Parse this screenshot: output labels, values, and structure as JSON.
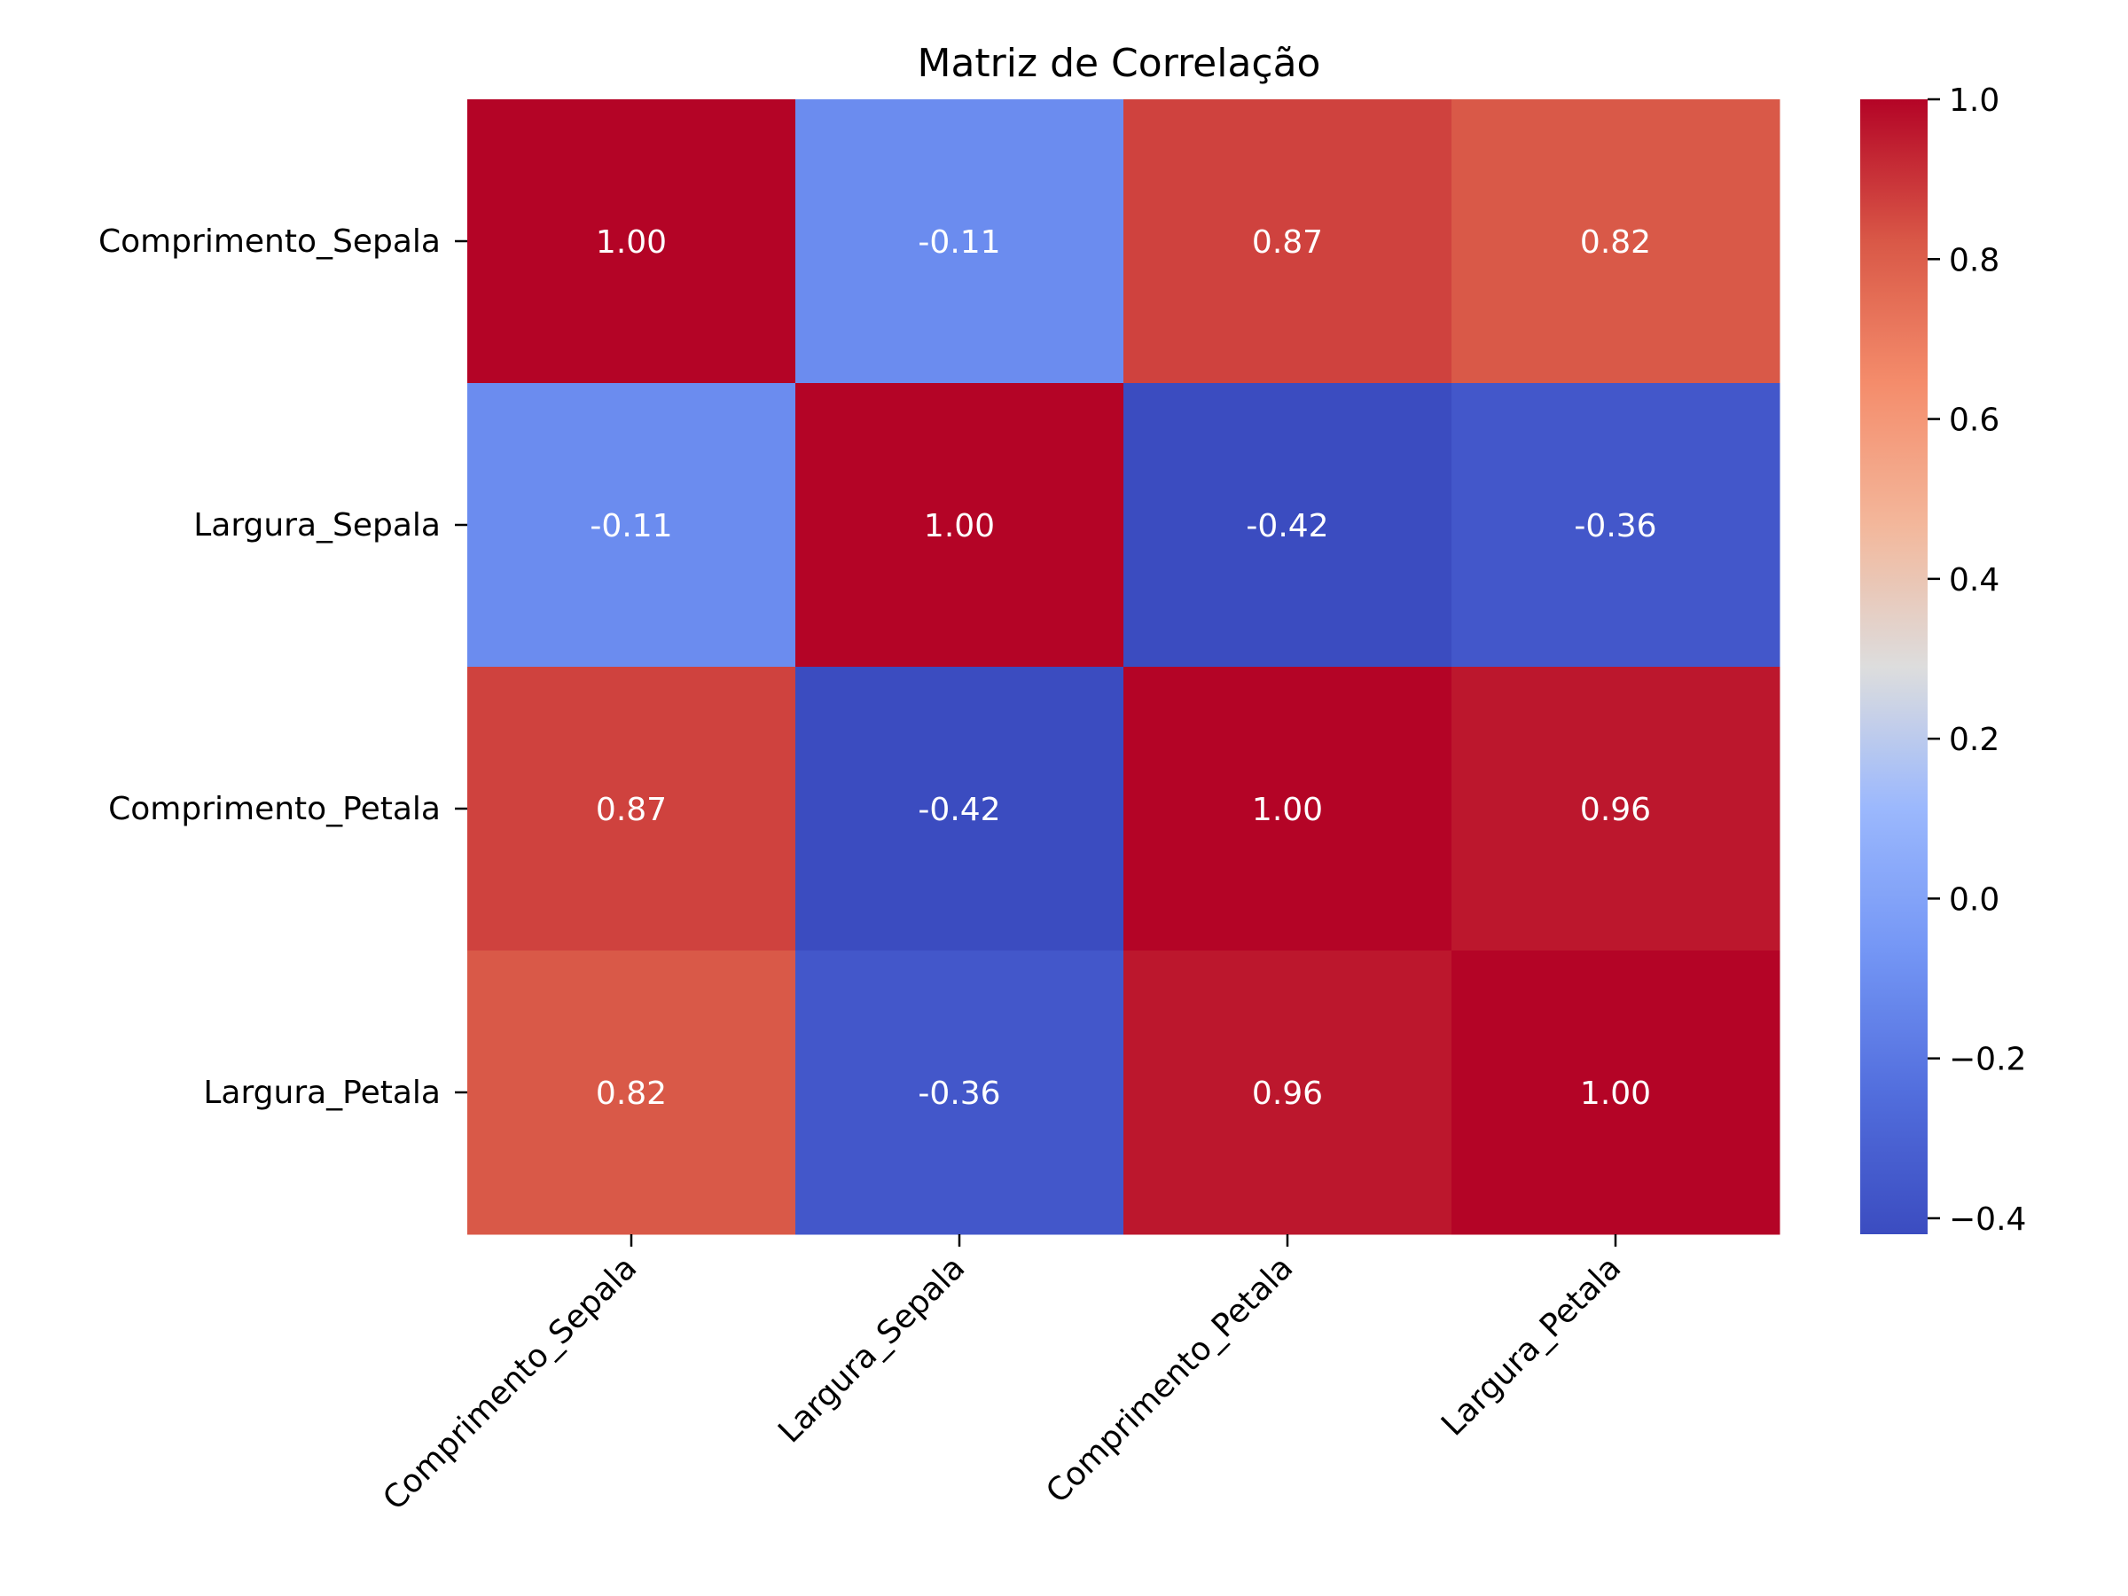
{
  "chart_data": {
    "type": "heatmap",
    "title": "Matriz de Correlação",
    "rows": [
      "Comprimento_Sepala",
      "Largura_Sepala",
      "Comprimento_Petala",
      "Largura_Petala"
    ],
    "columns": [
      "Comprimento_Sepala",
      "Largura_Sepala",
      "Comprimento_Petala",
      "Largura_Petala"
    ],
    "values": [
      [
        1.0,
        -0.11,
        0.87,
        0.82
      ],
      [
        -0.11,
        1.0,
        -0.42,
        -0.36
      ],
      [
        0.87,
        -0.42,
        1.0,
        0.96
      ],
      [
        0.82,
        -0.36,
        0.96,
        1.0
      ]
    ],
    "value_labels": [
      [
        "1.00",
        "-0.11",
        "0.87",
        "0.82"
      ],
      [
        "-0.11",
        "1.00",
        "-0.42",
        "-0.36"
      ],
      [
        "0.87",
        "-0.42",
        "1.00",
        "0.96"
      ],
      [
        "0.82",
        "-0.36",
        "0.96",
        "1.00"
      ]
    ],
    "colormap": "coolwarm",
    "vmin": -0.42,
    "vmax": 1.0,
    "colorbar_ticks": [
      1.0,
      0.8,
      0.6,
      0.4,
      0.2,
      0.0,
      -0.2,
      -0.4
    ],
    "colorbar_tick_labels": [
      "1.0",
      "0.8",
      "0.6",
      "0.4",
      "0.2",
      "0.0",
      "−0.2",
      "−0.4"
    ]
  }
}
